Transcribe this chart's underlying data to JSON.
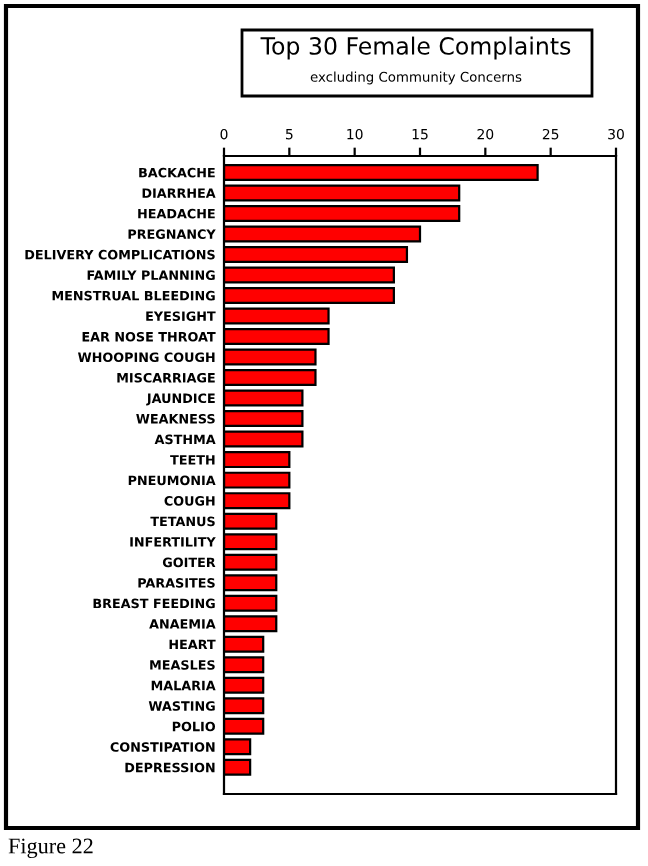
{
  "chart_data": {
    "type": "bar",
    "orientation": "horizontal",
    "title": "Top 30 Female Complaints",
    "subtitle": "excluding Community Concerns",
    "categories": [
      "BACKACHE",
      "DIARRHEA",
      "HEADACHE",
      "PREGNANCY",
      "DELIVERY COMPLICATIONS",
      "FAMILY PLANNING",
      "MENSTRUAL BLEEDING",
      "EYESIGHT",
      "EAR NOSE THROAT",
      "WHOOPING COUGH",
      "MISCARRIAGE",
      "JAUNDICE",
      "WEAKNESS",
      "ASTHMA",
      "TEETH",
      "PNEUMONIA",
      "COUGH",
      "TETANUS",
      "INFERTILITY",
      "GOITER",
      "PARASITES",
      "BREAST FEEDING",
      "ANAEMIA",
      "HEART",
      "MEASLES",
      "MALARIA",
      "WASTING",
      "POLIO",
      "CONSTIPATION",
      "DEPRESSION"
    ],
    "values": [
      24,
      18,
      18,
      15,
      14,
      13,
      13,
      8,
      8,
      7,
      7,
      6,
      6,
      6,
      5,
      5,
      5,
      4,
      4,
      4,
      4,
      4,
      4,
      3,
      3,
      3,
      3,
      3,
      2,
      2
    ],
    "color": "#ff0000",
    "xlim": [
      0,
      30
    ],
    "xticks": [
      0,
      5,
      10,
      15,
      20,
      25,
      30
    ],
    "grid": false,
    "legend": false,
    "annotations": [
      "Figure 22"
    ]
  }
}
